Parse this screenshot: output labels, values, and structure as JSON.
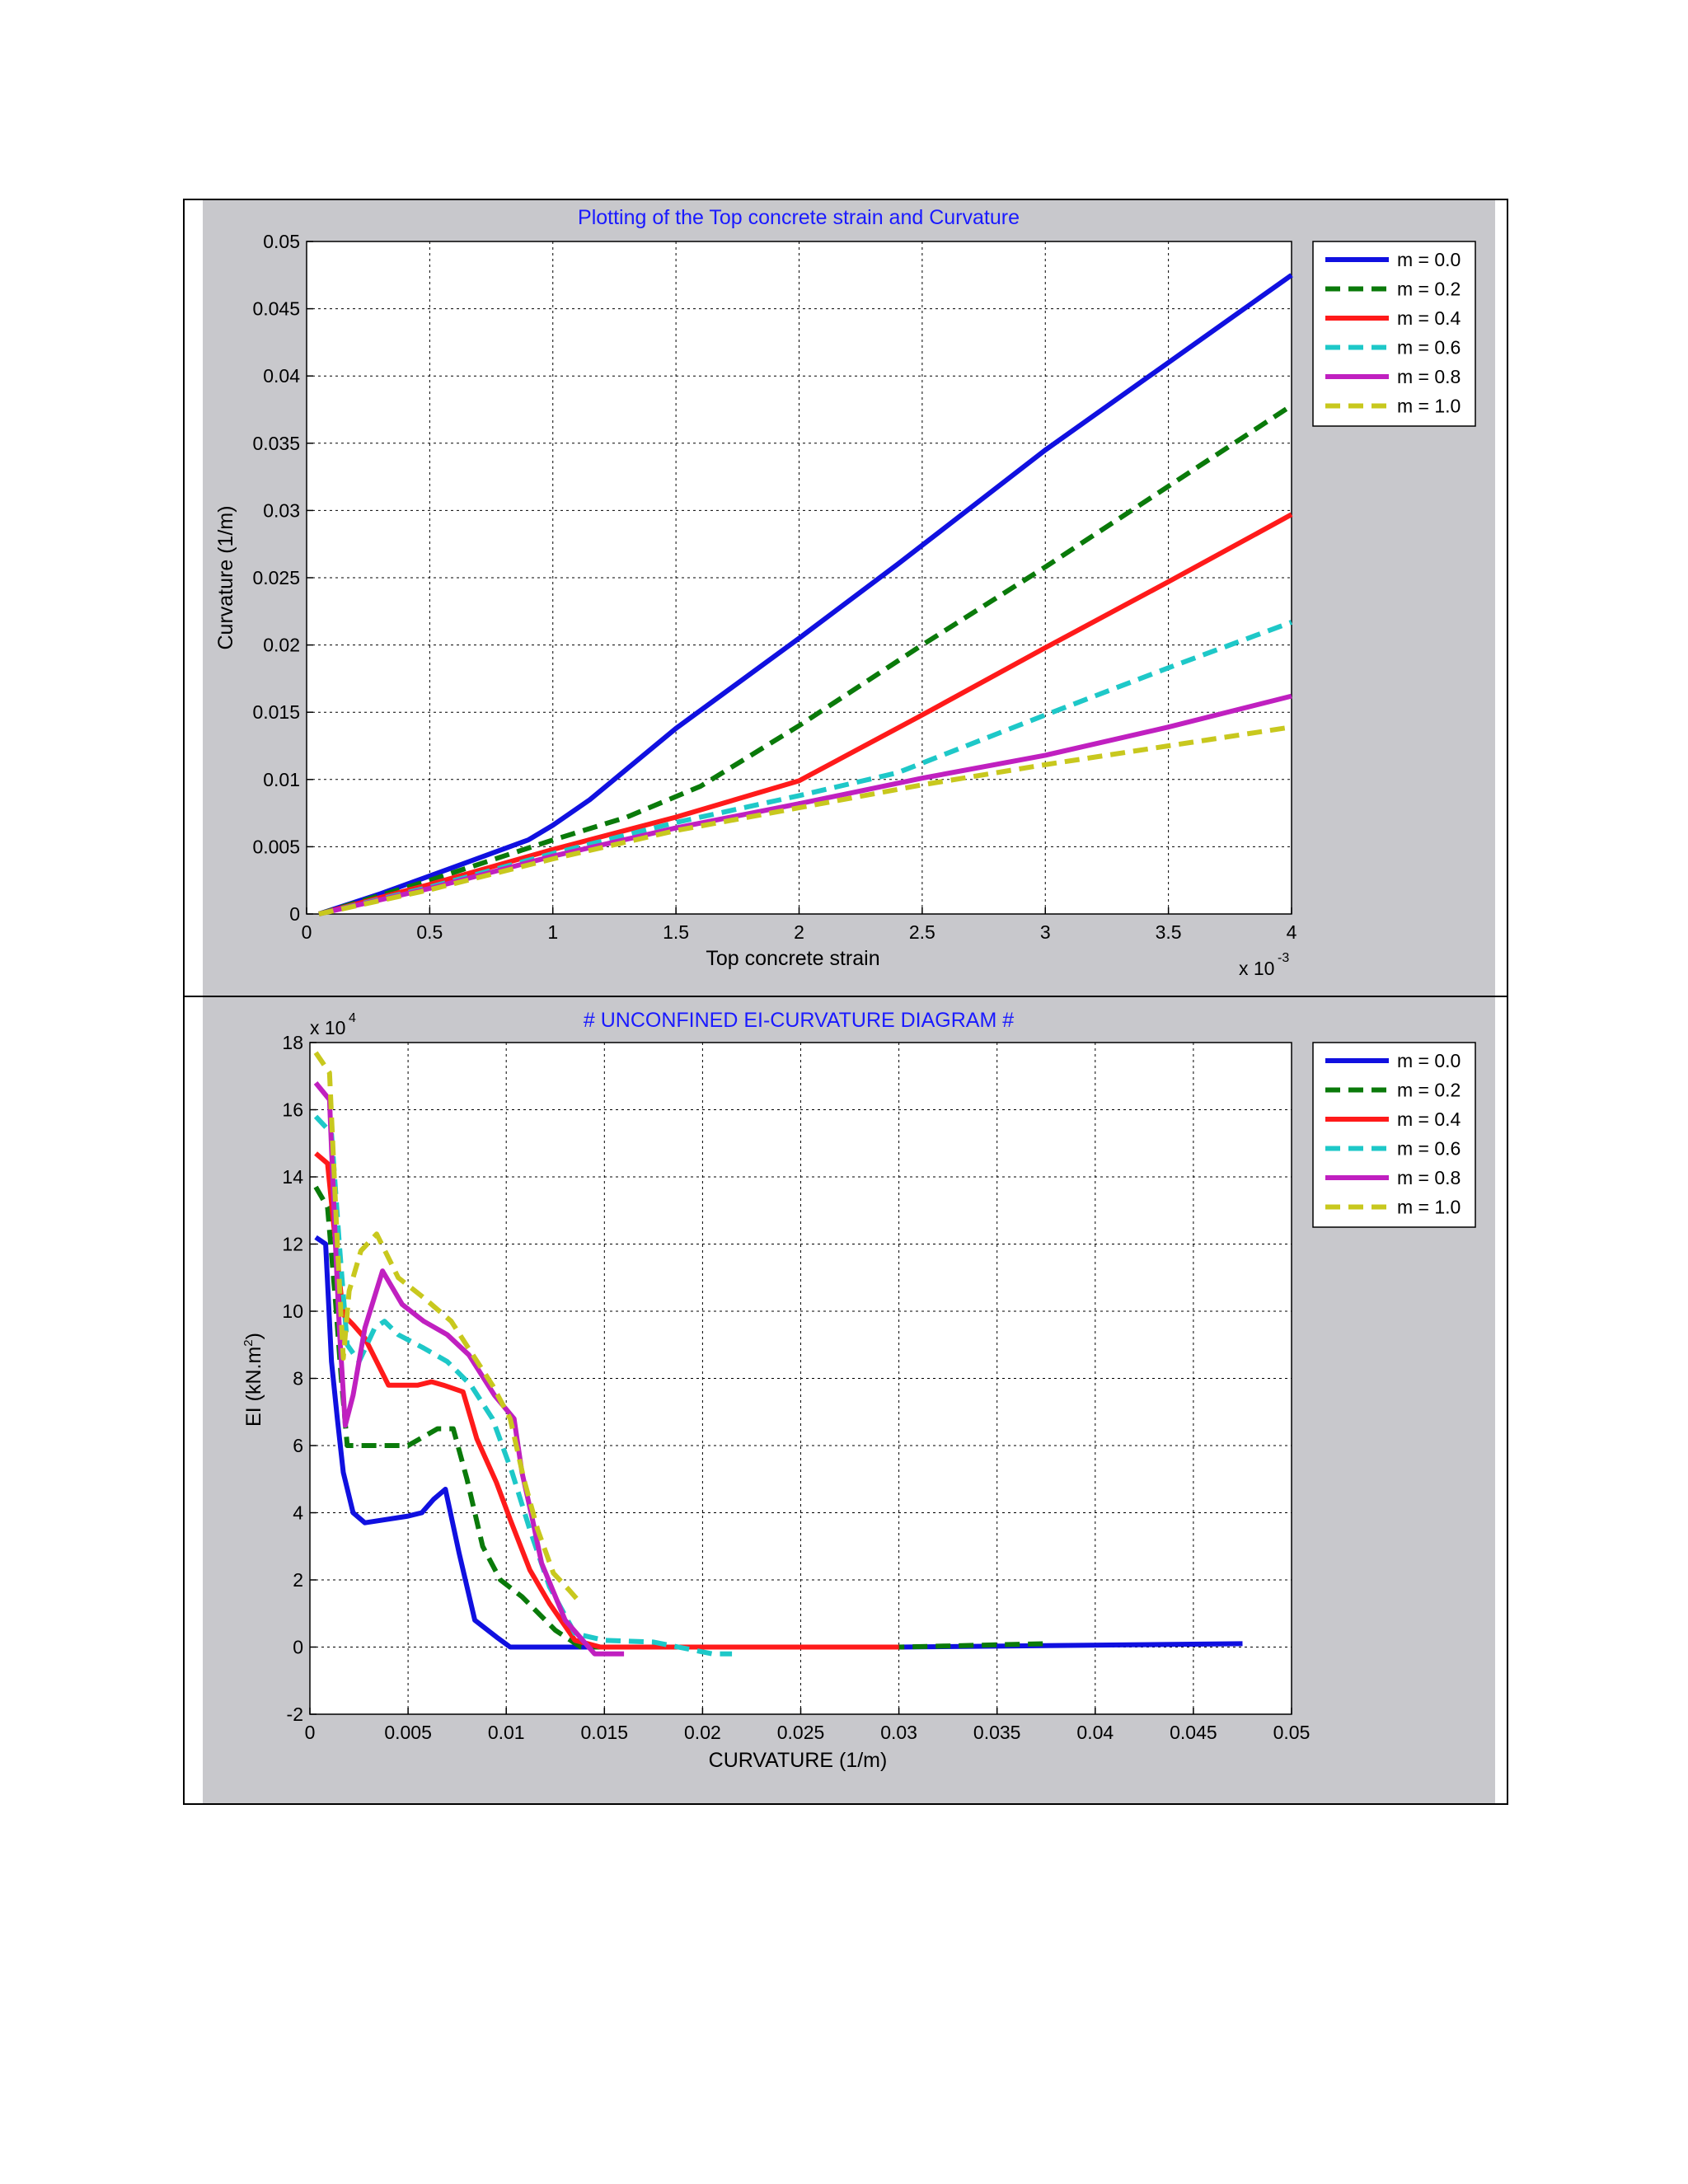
{
  "colors": {
    "page_background": "#ffffff",
    "figure_background": "#c8c8cc",
    "axes_background": "#ffffff",
    "title_color": "#1a1aff"
  },
  "series_styles": [
    {
      "name": "m = 0.0",
      "color": "#1010e0",
      "dash": "solid"
    },
    {
      "name": "m = 0.2",
      "color": "#0a7a0a",
      "dash": "dashed"
    },
    {
      "name": "m = 0.4",
      "color": "#ff1a1a",
      "dash": "solid"
    },
    {
      "name": "m = 0.6",
      "color": "#1ec8c8",
      "dash": "dashed"
    },
    {
      "name": "m = 0.8",
      "color": "#c020c0",
      "dash": "solid"
    },
    {
      "name": "m = 1.0",
      "color": "#c8c81e",
      "dash": "dashed"
    }
  ],
  "chart_data": [
    {
      "type": "line",
      "title": "Plotting of the Top concrete strain and Curvature",
      "xlabel": "Top concrete strain",
      "ylabel": "Curvature (1/m)",
      "x_multiplier_label": "x 10",
      "x_multiplier_exponent": "-3",
      "xlim": [
        0,
        4
      ],
      "ylim": [
        0,
        0.05
      ],
      "xticks": [
        "0",
        "0.5",
        "1",
        "1.5",
        "2",
        "2.5",
        "3",
        "3.5",
        "4"
      ],
      "yticks": [
        "0",
        "0.005",
        "0.01",
        "0.015",
        "0.02",
        "0.025",
        "0.03",
        "0.035",
        "0.04",
        "0.045",
        "0.05"
      ],
      "grid": true,
      "legend_position": "outside-right-top",
      "series": [
        {
          "name": "m = 0.0",
          "x": [
            0.05,
            0.3,
            0.6,
            0.9,
            1.0,
            1.15,
            1.5,
            2.0,
            2.4,
            3.0,
            3.5,
            4.0
          ],
          "y": [
            0.0,
            0.0015,
            0.0035,
            0.0055,
            0.0066,
            0.0085,
            0.0138,
            0.0205,
            0.026,
            0.0345,
            0.041,
            0.0475
          ]
        },
        {
          "name": "m = 0.2",
          "x": [
            0.05,
            0.5,
            1.0,
            1.3,
            1.6,
            2.0,
            2.5,
            3.0,
            3.5,
            4.0
          ],
          "y": [
            0.0,
            0.0025,
            0.0055,
            0.0072,
            0.0095,
            0.014,
            0.02,
            0.0258,
            0.0318,
            0.0378
          ]
        },
        {
          "name": "m = 0.4",
          "x": [
            0.05,
            0.5,
            1.0,
            1.5,
            2.0,
            2.5,
            3.0,
            3.5,
            4.0
          ],
          "y": [
            0.0,
            0.0022,
            0.0048,
            0.0072,
            0.0099,
            0.0148,
            0.0198,
            0.0247,
            0.0297
          ]
        },
        {
          "name": "m = 0.6",
          "x": [
            0.05,
            0.5,
            1.0,
            1.5,
            2.0,
            2.4,
            3.0,
            3.5,
            4.0
          ],
          "y": [
            0.0,
            0.002,
            0.0045,
            0.0068,
            0.0088,
            0.0105,
            0.0148,
            0.0183,
            0.0217
          ]
        },
        {
          "name": "m = 0.8",
          "x": [
            0.05,
            0.5,
            1.0,
            1.5,
            2.0,
            2.5,
            3.0,
            3.5,
            4.0
          ],
          "y": [
            0.0,
            0.0019,
            0.0043,
            0.0064,
            0.0082,
            0.0101,
            0.0118,
            0.0139,
            0.0162
          ]
        },
        {
          "name": "m = 1.0",
          "x": [
            0.05,
            0.5,
            1.0,
            1.5,
            2.0,
            2.5,
            3.0,
            3.5,
            4.0
          ],
          "y": [
            0.0,
            0.0018,
            0.0041,
            0.0062,
            0.0079,
            0.0096,
            0.0111,
            0.0125,
            0.0139
          ]
        }
      ]
    },
    {
      "type": "line",
      "title": "# UNCONFINED EI-CURVATURE DIAGRAM #",
      "xlabel": "CURVATURE (1/m)",
      "ylabel_main": "EI (kN.m",
      "ylabel_sup": "2",
      "ylabel_end": ")",
      "y_multiplier_label": "x 10",
      "y_multiplier_exponent": "4",
      "xlim": [
        0,
        0.05
      ],
      "ylim": [
        -2,
        18
      ],
      "xticks": [
        "0",
        "0.005",
        "0.01",
        "0.015",
        "0.02",
        "0.025",
        "0.03",
        "0.035",
        "0.04",
        "0.045",
        "0.05"
      ],
      "yticks": [
        "-2",
        "0",
        "2",
        "4",
        "6",
        "8",
        "10",
        "12",
        "14",
        "16",
        "18"
      ],
      "grid": true,
      "legend_position": "outside-right-top",
      "series": [
        {
          "name": "m = 0.0",
          "x": [
            0.0003,
            0.0008,
            0.0011,
            0.0014,
            0.0017,
            0.0022,
            0.0028,
            0.005,
            0.0057,
            0.0063,
            0.0069,
            0.0076,
            0.0084,
            0.0095,
            0.0102,
            0.012,
            0.015,
            0.02,
            0.03,
            0.0475
          ],
          "y": [
            12.2,
            12.0,
            8.5,
            6.8,
            5.2,
            4.0,
            3.7,
            3.9,
            4.0,
            4.4,
            4.7,
            2.8,
            0.8,
            0.3,
            0.0,
            0.0,
            0.0,
            0.0,
            0.0,
            0.1
          ]
        },
        {
          "name": "m = 0.2",
          "x": [
            0.0003,
            0.0009,
            0.0013,
            0.0016,
            0.0019,
            0.0025,
            0.005,
            0.0065,
            0.0073,
            0.008,
            0.0088,
            0.0097,
            0.0108,
            0.0125,
            0.0138,
            0.015,
            0.018,
            0.02,
            0.03,
            0.0375
          ],
          "y": [
            13.7,
            13.1,
            10.3,
            8.0,
            6.0,
            6.0,
            6.0,
            6.5,
            6.5,
            5.0,
            3.0,
            2.0,
            1.5,
            0.5,
            0.0,
            0.0,
            0.0,
            0.0,
            0.0,
            0.1
          ]
        },
        {
          "name": "m = 0.4",
          "x": [
            0.0003,
            0.0009,
            0.0014,
            0.0017,
            0.0022,
            0.0028,
            0.004,
            0.0055,
            0.0062,
            0.0068,
            0.0078,
            0.0085,
            0.0095,
            0.0102,
            0.0112,
            0.0122,
            0.0135,
            0.0148,
            0.016,
            0.03
          ],
          "y": [
            14.7,
            14.4,
            11.5,
            9.9,
            9.6,
            9.2,
            7.8,
            7.8,
            7.9,
            7.8,
            7.6,
            6.2,
            4.9,
            3.8,
            2.3,
            1.3,
            0.2,
            0.0,
            0.0,
            0.0
          ]
        },
        {
          "name": "m = 0.6",
          "x": [
            0.0003,
            0.0011,
            0.0015,
            0.0019,
            0.0025,
            0.0033,
            0.0038,
            0.0045,
            0.0058,
            0.007,
            0.0082,
            0.0093,
            0.0103,
            0.0112,
            0.0122,
            0.0135,
            0.015,
            0.0175,
            0.0205,
            0.0215
          ],
          "y": [
            15.8,
            15.3,
            12.0,
            9.0,
            8.5,
            9.5,
            9.7,
            9.3,
            8.9,
            8.5,
            7.8,
            6.8,
            5.2,
            3.5,
            1.8,
            0.4,
            0.2,
            0.15,
            -0.2,
            -0.2
          ]
        },
        {
          "name": "m = 0.8",
          "x": [
            0.0003,
            0.001,
            0.0013,
            0.0015,
            0.0018,
            0.0022,
            0.0028,
            0.0037,
            0.0047,
            0.0058,
            0.007,
            0.0081,
            0.0094,
            0.0104,
            0.0108,
            0.0113,
            0.0118,
            0.013,
            0.0145,
            0.016
          ],
          "y": [
            16.8,
            16.3,
            12.0,
            9.5,
            6.6,
            7.5,
            9.5,
            11.2,
            10.2,
            9.7,
            9.3,
            8.7,
            7.5,
            6.8,
            5.2,
            3.9,
            2.5,
            0.8,
            -0.2,
            -0.2
          ]
        },
        {
          "name": "m = 1.0",
          "x": [
            0.0003,
            0.001,
            0.0014,
            0.0017,
            0.002,
            0.0026,
            0.0034,
            0.0045,
            0.0058,
            0.0072,
            0.0083,
            0.0093,
            0.0102,
            0.0109,
            0.0116,
            0.0124,
            0.0132,
            0.0138
          ],
          "y": [
            17.7,
            17.1,
            12.0,
            8.6,
            10.6,
            11.8,
            12.3,
            11.0,
            10.4,
            9.7,
            8.7,
            7.8,
            6.8,
            5.0,
            3.5,
            2.2,
            1.7,
            1.3
          ]
        }
      ]
    }
  ]
}
